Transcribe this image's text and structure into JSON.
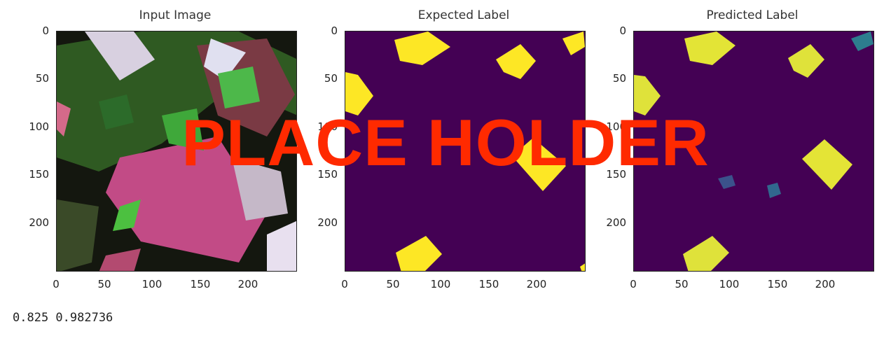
{
  "panels": [
    {
      "title": "Input Image",
      "y_ticks": [
        "0",
        "50",
        "100",
        "150",
        "200"
      ],
      "x_ticks": [
        "0",
        "50",
        "100",
        "150",
        "200"
      ]
    },
    {
      "title": "Expected Label",
      "y_ticks": [
        "0",
        "50",
        "100",
        "150",
        "200"
      ],
      "x_ticks": [
        "0",
        "50",
        "100",
        "150",
        "200"
      ]
    },
    {
      "title": "Predicted Label",
      "y_ticks": [
        "0",
        "50",
        "100",
        "150",
        "200"
      ],
      "x_ticks": [
        "0",
        "50",
        "100",
        "150",
        "200"
      ]
    }
  ],
  "output_text": "0.825 0.982736",
  "watermark": "PLACE HOLDER",
  "colors": {
    "label_bg": "#440154",
    "label_fg": "#fde725",
    "watermark": "#ff2a00"
  }
}
